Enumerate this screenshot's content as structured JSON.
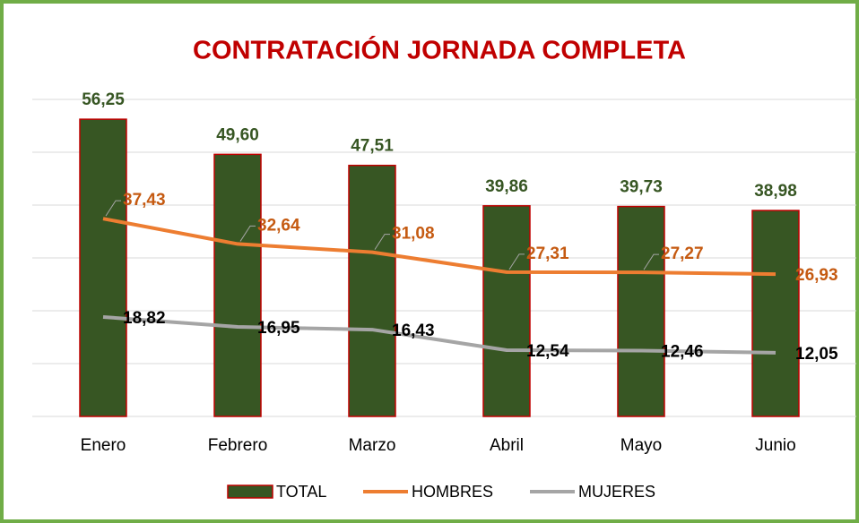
{
  "chart_data": {
    "type": "bar",
    "title": "CONTRATACIÓN JORNADA COMPLETA",
    "categories": [
      "Enero",
      "Febrero",
      "Marzo",
      "Abril",
      "Mayo",
      "Junio"
    ],
    "ylim": [
      0,
      60
    ],
    "yticks": [
      0,
      10,
      20,
      30,
      40,
      50,
      60
    ],
    "grid": true,
    "legend": "bottom",
    "series": [
      {
        "name": "TOTAL",
        "type": "bar",
        "color": "#375623",
        "edge": "#c00000",
        "label_color": "#375623",
        "values": [
          56.25,
          49.6,
          47.51,
          39.86,
          39.73,
          38.98
        ],
        "value_labels": [
          "56,25",
          "49,60",
          "47,51",
          "39,86",
          "39,73",
          "38,98"
        ]
      },
      {
        "name": "HOMBRES",
        "type": "line",
        "color": "#ed7d31",
        "label_color": "#c55a11",
        "values": [
          37.43,
          32.64,
          31.08,
          27.31,
          27.27,
          26.93
        ],
        "value_labels": [
          "37,43",
          "32,64",
          "31,08",
          "27,31",
          "27,27",
          "26,93"
        ]
      },
      {
        "name": "MUJERES",
        "type": "line",
        "color": "#a5a5a5",
        "label_color": "#000000",
        "values": [
          18.82,
          16.95,
          16.43,
          12.54,
          12.46,
          12.05
        ],
        "value_labels": [
          "18,82",
          "16,95",
          "16,43",
          "12,54",
          "12,46",
          "12,05"
        ]
      }
    ]
  }
}
